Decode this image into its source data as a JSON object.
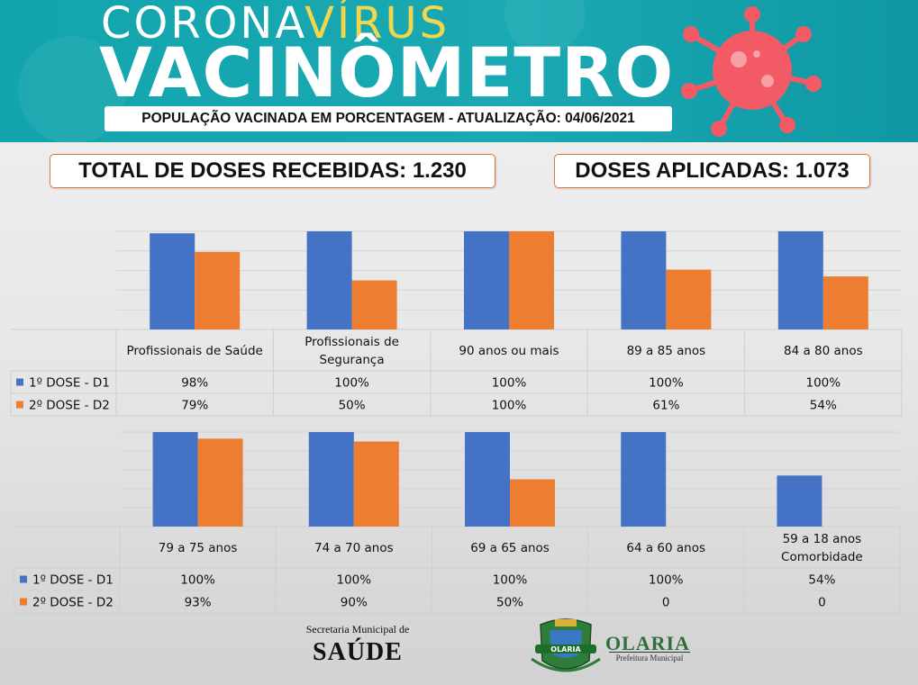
{
  "header": {
    "title_part1": "CORONA",
    "title_part2": "VÍRUS",
    "title_line2": "VACINÔMETRO",
    "subtitle": "POPULAÇÃO VACINADA EM PORCENTAGEM - ATUALIZAÇÃO: 04/06/2021"
  },
  "stats": {
    "received": "TOTAL DE DOSES RECEBIDAS: 1.230",
    "applied": "DOSES APLICADAS: 1.073"
  },
  "colors": {
    "dose1": "#4472c4",
    "dose2": "#ed7d31"
  },
  "chart_data": [
    {
      "type": "bar",
      "categories": [
        [
          "Profissionais de Saúde"
        ],
        [
          "Profissionais de",
          "Segurança"
        ],
        [
          "90 anos ou mais"
        ],
        [
          "89 a 85 anos"
        ],
        [
          "84 a 80 anos"
        ]
      ],
      "series": [
        {
          "name": "1º DOSE - D1",
          "values": [
            98,
            100,
            100,
            100,
            100
          ],
          "labels": [
            "98%",
            "100%",
            "100%",
            "100%",
            "100%"
          ]
        },
        {
          "name": "2º DOSE - D2",
          "values": [
            79,
            50,
            100,
            61,
            54
          ],
          "labels": [
            "79%",
            "50%",
            "100%",
            "61%",
            "54%"
          ]
        }
      ],
      "ylim": [
        0,
        100
      ],
      "grid": true,
      "legend": "table"
    },
    {
      "type": "bar",
      "categories": [
        [
          "79 a 75 anos"
        ],
        [
          "74 a 70 anos"
        ],
        [
          "69 a 65 anos"
        ],
        [
          "64 a 60 anos"
        ],
        [
          "59 a 18 anos",
          "Comorbidade"
        ]
      ],
      "series": [
        {
          "name": "1º DOSE - D1",
          "values": [
            100,
            100,
            100,
            100,
            54
          ],
          "labels": [
            "100%",
            "100%",
            "100%",
            "100%",
            "54%"
          ]
        },
        {
          "name": "2º DOSE - D2",
          "values": [
            93,
            90,
            50,
            0,
            0
          ],
          "labels": [
            "93%",
            "90%",
            "50%",
            "0",
            "0"
          ]
        }
      ],
      "ylim": [
        0,
        100
      ],
      "grid": true,
      "legend": "table"
    }
  ],
  "footer": {
    "secretaria_small": "Secretaria Municipal de",
    "secretaria_big": "SAÚDE",
    "logo_badge": "OLARIA",
    "olaria": "OLARIA",
    "prefeitura": "Prefeitura Municipal"
  }
}
